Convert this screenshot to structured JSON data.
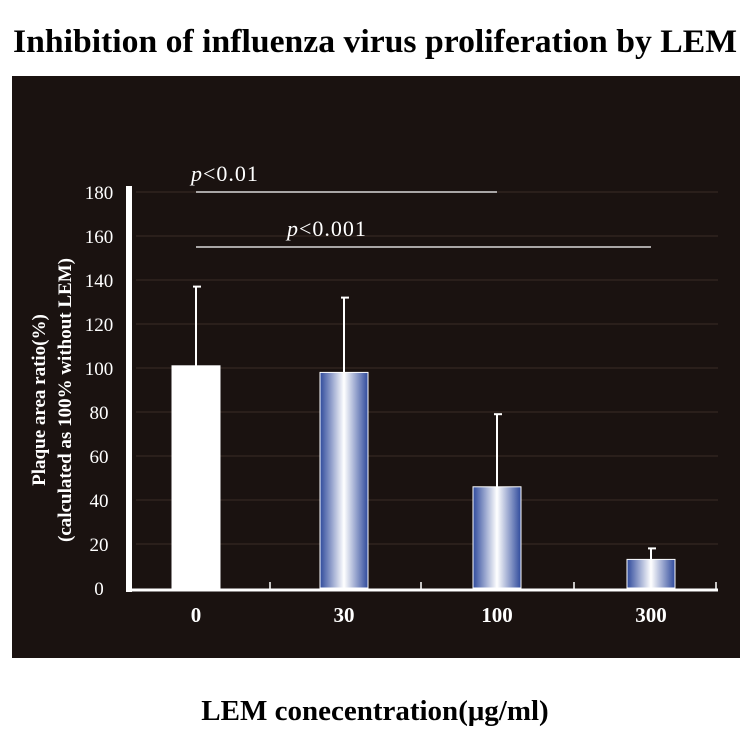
{
  "chart_data": {
    "type": "bar",
    "title": "Inhibition of influenza virus proliferation by LEM",
    "xlabel": "LEM conecentration(μg/ml)",
    "ylabel_line1": "Plaque area ratio(%)",
    "ylabel_line2": "(calculated as 100% without LEM)",
    "categories": [
      "0",
      "30",
      "100",
      "300"
    ],
    "values": [
      101,
      98,
      46,
      13
    ],
    "error_upper": [
      137,
      132,
      79,
      18
    ],
    "ylim": [
      0,
      180
    ],
    "yticks": [
      "0",
      "20",
      "40",
      "60",
      "80",
      "100",
      "120",
      "140",
      "160",
      "180"
    ],
    "significance": [
      {
        "label_p": "p",
        "label_rest": "<0.01",
        "from_category": "0",
        "to_category": "100"
      },
      {
        "label_p": "p",
        "label_rest": "<0.001",
        "from_category": "0",
        "to_category": "300"
      }
    ],
    "colors": {
      "background": "#1a1210",
      "control_bar": "#ffffff",
      "treated_bar_dark": "#2f4a9c",
      "treated_bar_light": "#ffffff",
      "axis": "#ffffff",
      "grid": "#3a2c26"
    }
  }
}
